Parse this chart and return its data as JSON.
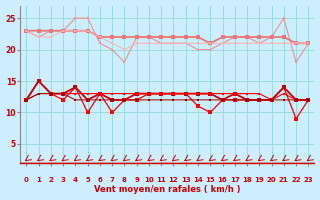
{
  "x": [
    0,
    1,
    2,
    3,
    4,
    5,
    6,
    7,
    8,
    9,
    10,
    11,
    12,
    13,
    14,
    15,
    16,
    17,
    18,
    19,
    20,
    21,
    22,
    23
  ],
  "line_rafale1": [
    23,
    22,
    23,
    23,
    25,
    25,
    21,
    20,
    18,
    22,
    22,
    21,
    21,
    21,
    20,
    20,
    21,
    22,
    22,
    21,
    22,
    25,
    18,
    21
  ],
  "line_rafale2": [
    23,
    23,
    23,
    23,
    23,
    23,
    22,
    22,
    22,
    22,
    22,
    22,
    22,
    22,
    22,
    21,
    22,
    22,
    22,
    22,
    22,
    22,
    21,
    21
  ],
  "line_rafale3": [
    23,
    22,
    22,
    23,
    23,
    23,
    22,
    21,
    20,
    21,
    21,
    21,
    21,
    21,
    21,
    21,
    21,
    21,
    21,
    21,
    21,
    21,
    21,
    21
  ],
  "line_moy1": [
    12,
    15,
    13,
    12,
    14,
    10,
    13,
    10,
    12,
    12,
    13,
    13,
    13,
    13,
    11,
    10,
    12,
    12,
    12,
    12,
    12,
    14,
    9,
    12
  ],
  "line_moy2": [
    12,
    15,
    13,
    13,
    14,
    12,
    13,
    12,
    12,
    13,
    13,
    13,
    13,
    13,
    13,
    13,
    12,
    13,
    12,
    12,
    12,
    14,
    12,
    12
  ],
  "line_moy3": [
    12,
    13,
    13,
    13,
    13,
    13,
    13,
    13,
    13,
    13,
    13,
    13,
    13,
    13,
    13,
    13,
    13,
    13,
    13,
    13,
    12,
    13,
    12,
    12
  ],
  "line_moy4": [
    12,
    13,
    13,
    13,
    12,
    12,
    12,
    12,
    12,
    12,
    12,
    12,
    12,
    12,
    12,
    12,
    12,
    12,
    12,
    12,
    12,
    12,
    12,
    12
  ],
  "color_pink1": "#f09090",
  "color_pink2": "#e87878",
  "color_pink3": "#f8b0b0",
  "color_red1": "#ff0000",
  "color_red2": "#cc0000",
  "color_red3": "#990000",
  "bg_color": "#cceeff",
  "grid_color": "#99dddd",
  "xlabel": "Vent moyen/en rafales ( km/h )",
  "ylim": [
    2,
    27
  ],
  "yticks": [
    5,
    10,
    15,
    20,
    25
  ],
  "xticks": [
    0,
    1,
    2,
    3,
    4,
    5,
    6,
    7,
    8,
    9,
    10,
    11,
    12,
    13,
    14,
    15,
    16,
    17,
    18,
    19,
    20,
    21,
    22,
    23
  ]
}
